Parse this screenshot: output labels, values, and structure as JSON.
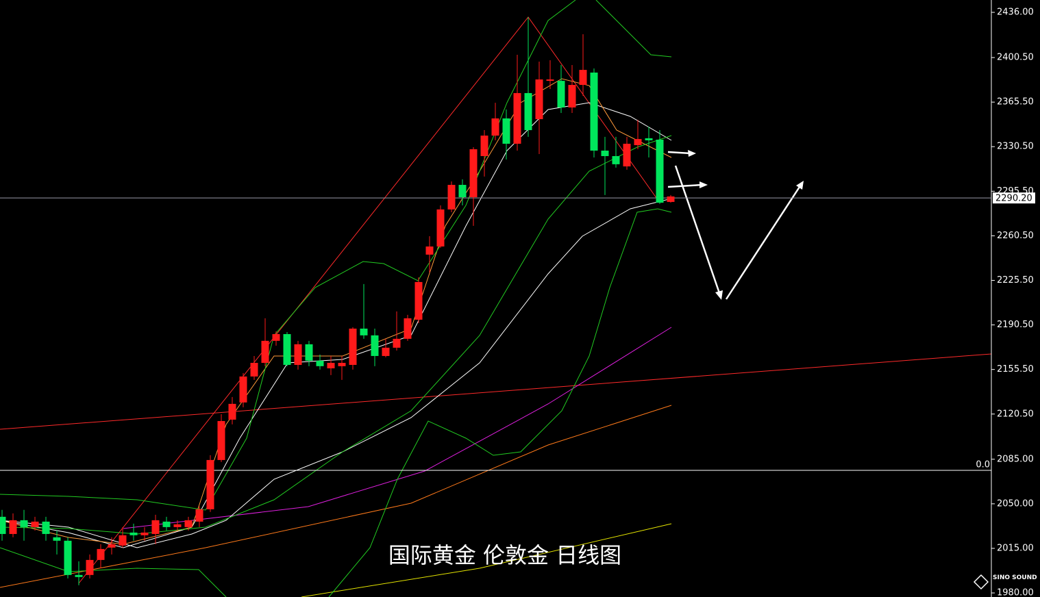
{
  "chart_data": {
    "type": "candlestick",
    "title": "国际黄金 伦敦金 日线图",
    "up_color": "#ff1a1a",
    "down_color": "#00e65c",
    "ylim": [
      1976.8,
      2445.7
    ],
    "yticks": [
      {
        "value": 2436.0,
        "label": "2436.00"
      },
      {
        "value": 2400.5,
        "label": "2400.50"
      },
      {
        "value": 2365.5,
        "label": "2365.50"
      },
      {
        "value": 2330.5,
        "label": "2330.50"
      },
      {
        "value": 2295.5,
        "label": "2295.50"
      },
      {
        "value": 2260.5,
        "label": "2260.50"
      },
      {
        "value": 2225.5,
        "label": "2225.50"
      },
      {
        "value": 2190.5,
        "label": "2190.50"
      },
      {
        "value": 2155.5,
        "label": "2155.50"
      },
      {
        "value": 2120.5,
        "label": "2120.50"
      },
      {
        "value": 2085.0,
        "label": "2085.00"
      },
      {
        "value": 2050.0,
        "label": "2050.00"
      },
      {
        "value": 2015.0,
        "label": "2015.00"
      },
      {
        "value": 1980.0,
        "label": "1980.00"
      }
    ],
    "current_price": {
      "value": 2290.2,
      "label": "2290.20"
    },
    "level_line": {
      "value": 2076.3,
      "label": "0.0"
    },
    "logo": "SINO SOUND",
    "open": [
      2039.8,
      2026.3,
      2037.1,
      2031.7,
      2036.0,
      2023.7,
      2021.0,
      1994.1,
      1994.1,
      2005.9,
      2015.6,
      2017.2,
      2027.4,
      2025.3,
      2026.3,
      2036.0,
      2031.7,
      2031.7,
      2036.0,
      2045.7,
      2084.4,
      2116.1,
      2129.6,
      2150.0,
      2160.7,
      2178.0,
      2183.3,
      2159.1,
      2175.3,
      2162.4,
      2156.4,
      2158.1,
      2159.1,
      2187.6,
      2182.3,
      2166.1,
      2172.6,
      2179.6,
      2194.6,
      2245.7,
      2252.1,
      2281.2,
      2300.5,
      2290.8,
      2323.1,
      2339.2,
      2352.7,
      2332.8,
      2372.6,
      2352.1,
      2382.2,
      2382.2,
      2361.3,
      2379.0,
      2388.7,
      2327.4,
      2323.1,
      2315.0,
      2331.7,
      2337.1,
      2336.0,
      2287.1
    ],
    "high": [
      2045.2,
      2042.5,
      2045.2,
      2039.8,
      2039.8,
      2029.0,
      2023.7,
      2004.8,
      2010.2,
      2018.3,
      2023.7,
      2031.7,
      2034.4,
      2031.7,
      2041.4,
      2039.8,
      2037.1,
      2039.8,
      2047.9,
      2088.2,
      2120.4,
      2133.9,
      2152.7,
      2166.1,
      2195.7,
      2185.5,
      2184.9,
      2178.0,
      2178.0,
      2167.2,
      2166.1,
      2166.1,
      2188.7,
      2222.6,
      2187.6,
      2179.6,
      2201.1,
      2198.4,
      2227.9,
      2260.2,
      2284.4,
      2303.2,
      2304.8,
      2330.1,
      2343.5,
      2365.0,
      2359.7,
      2402.7,
      2432.2,
      2397.3,
      2398.4,
      2394.6,
      2394.6,
      2418.8,
      2391.9,
      2338.2,
      2338.2,
      2338.2,
      2351.6,
      2346.2,
      2343.5,
      2292.5
    ],
    "low": [
      2021.0,
      2023.7,
      2021.0,
      2029.0,
      2021.0,
      2010.2,
      1991.4,
      1986.0,
      1991.4,
      1999.5,
      2010.2,
      2015.6,
      2021.0,
      2021.0,
      2018.3,
      2029.0,
      2029.0,
      2029.0,
      2031.7,
      2043.6,
      2082.8,
      2112.4,
      2125.8,
      2147.3,
      2158.1,
      2174.2,
      2158.1,
      2155.4,
      2158.1,
      2155.4,
      2151.1,
      2147.3,
      2155.4,
      2179.6,
      2158.1,
      2165.1,
      2170.4,
      2178.0,
      2191.9,
      2231.7,
      2251.1,
      2279.0,
      2284.4,
      2268.3,
      2307.0,
      2335.5,
      2320.4,
      2327.4,
      2338.2,
      2324.7,
      2375.8,
      2357.0,
      2357.0,
      2370.4,
      2322.0,
      2292.5,
      2314.0,
      2312.4,
      2328.5,
      2322.0,
      2285.5,
      2286.5
    ],
    "close": [
      2026.3,
      2037.1,
      2031.7,
      2036.0,
      2026.3,
      2021.0,
      1994.1,
      1992.5,
      2005.9,
      2014.5,
      2018.3,
      2025.3,
      2025.3,
      2027.4,
      2037.1,
      2031.7,
      2033.9,
      2037.1,
      2045.7,
      2084.4,
      2115.0,
      2128.5,
      2150.0,
      2160.7,
      2178.0,
      2183.3,
      2159.1,
      2175.3,
      2162.4,
      2158.1,
      2160.7,
      2160.7,
      2187.6,
      2182.3,
      2166.1,
      2172.6,
      2179.6,
      2195.7,
      2224.2,
      2252.1,
      2281.2,
      2300.5,
      2290.8,
      2328.5,
      2339.2,
      2352.7,
      2332.8,
      2372.6,
      2343.5,
      2383.3,
      2383.3,
      2361.3,
      2379.0,
      2390.8,
      2327.4,
      2323.1,
      2316.7,
      2332.8,
      2336.5,
      2335.5,
      2286.5,
      2291.4
    ]
  }
}
